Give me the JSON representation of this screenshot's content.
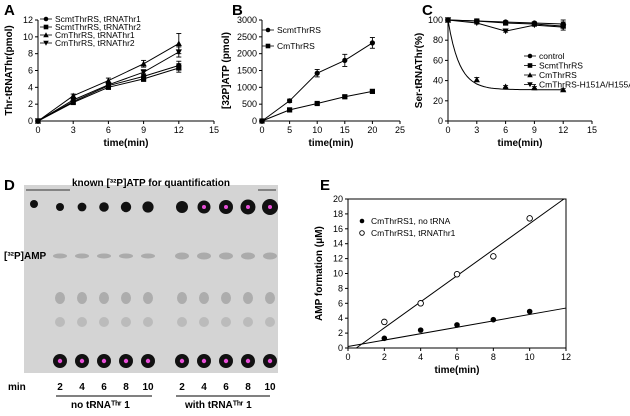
{
  "panels": {
    "A": "A",
    "B": "B",
    "C": "C",
    "D": "D",
    "E": "E"
  },
  "gel": {
    "header": "known [³²P]ATP for quantification",
    "amp_label": "[³²P]AMP",
    "min_label": "min",
    "lanes_left": [
      "2",
      "4",
      "6",
      "8",
      "10"
    ],
    "lanes_right": [
      "2",
      "4",
      "6",
      "8",
      "10"
    ],
    "group_left": "no tRNAᵀʰʳ 1",
    "group_right": "with tRNAᵀʰʳ 1",
    "colors": {
      "background": "#d2d2d2",
      "spot": "#111111",
      "highlight": "#e84fd8"
    }
  },
  "chart_data": [
    {
      "id": "A",
      "type": "line",
      "ylabel": "Thr-tRNAThr(pmol)",
      "xlabel": "time(min)",
      "xlim": [
        0,
        15
      ],
      "ylim": [
        0,
        12
      ],
      "xticks": [
        0,
        3,
        6,
        9,
        12,
        15
      ],
      "yticks": [
        0,
        2,
        4,
        6,
        8,
        10,
        12
      ],
      "legend_position": "top-left",
      "x": [
        0,
        3,
        6,
        9,
        12
      ],
      "series": [
        {
          "name": "ScmtThrRS, tRNAThr1",
          "marker": "circle",
          "values": [
            0,
            2.3,
            4.2,
            5.3,
            6.6
          ],
          "err": [
            0,
            0.2,
            0.2,
            0.3,
            0.5
          ]
        },
        {
          "name": "ScmtThrRS, tRNAThr2",
          "marker": "square",
          "values": [
            0,
            2.2,
            4.0,
            5.0,
            6.3
          ],
          "err": [
            0,
            0.2,
            0.2,
            0.3,
            0.5
          ]
        },
        {
          "name": "CmThrRS, tRNAThr1",
          "marker": "triangle-up",
          "values": [
            0,
            3.0,
            4.8,
            6.8,
            9.2
          ],
          "err": [
            0,
            0.2,
            0.3,
            0.4,
            1.2
          ]
        },
        {
          "name": "CmThrRS, tRNAThr2",
          "marker": "triangle-down",
          "values": [
            0,
            2.5,
            4.3,
            5.8,
            8.2
          ],
          "err": [
            0,
            0.2,
            0.2,
            0.3,
            0.6
          ]
        }
      ]
    },
    {
      "id": "B",
      "type": "line",
      "ylabel": "[32P]ATP (pmol)",
      "xlabel": "time(min)",
      "xlim": [
        0,
        25
      ],
      "ylim": [
        0,
        3000
      ],
      "xticks": [
        0,
        5,
        10,
        15,
        20,
        25
      ],
      "yticks": [
        0,
        500,
        1000,
        1500,
        2000,
        2500,
        3000
      ],
      "legend_position": "top-left",
      "x": [
        0,
        5,
        10,
        15,
        20
      ],
      "series": [
        {
          "name": "ScmtThrRS",
          "marker": "circle",
          "values": [
            0,
            600,
            1420,
            1800,
            2320
          ],
          "err": [
            0,
            50,
            110,
            180,
            160
          ]
        },
        {
          "name": "CmThrRS",
          "marker": "square",
          "values": [
            0,
            330,
            520,
            720,
            880
          ],
          "err": [
            0,
            20,
            30,
            40,
            40
          ]
        }
      ]
    },
    {
      "id": "C",
      "type": "line",
      "ylabel": "Ser-tRNAThr(%)",
      "xlabel": "time(min)",
      "xlim": [
        0,
        15
      ],
      "ylim": [
        0,
        100
      ],
      "xticks": [
        0,
        3,
        6,
        9,
        12,
        15
      ],
      "yticks": [
        0,
        20,
        40,
        60,
        80,
        100
      ],
      "legend_position": "right",
      "x": [
        0,
        3,
        6,
        9,
        12
      ],
      "series": [
        {
          "name": "control",
          "marker": "circle",
          "values": [
            100,
            99,
            98,
            97,
            96
          ],
          "err": [
            0,
            1,
            1,
            1,
            4
          ]
        },
        {
          "name": "ScmtThrRS",
          "marker": "square",
          "values": [
            100,
            99,
            97,
            96,
            94
          ],
          "err": [
            0,
            1,
            1,
            1,
            4
          ]
        },
        {
          "name": "CmThrRS",
          "marker": "triangle-up",
          "values": [
            100,
            41,
            34,
            33,
            31
          ],
          "err": [
            0,
            2,
            1,
            1,
            1
          ]
        },
        {
          "name": "CmThrRS-H151A/H155A",
          "marker": "triangle-down",
          "values": [
            100,
            97,
            89,
            95,
            93
          ],
          "err": [
            0,
            1,
            1,
            1,
            1
          ]
        }
      ]
    },
    {
      "id": "E",
      "type": "scatter",
      "ylabel": "AMP formation (μM)",
      "xlabel": "time(min)",
      "xlim": [
        0,
        12
      ],
      "ylim": [
        0,
        20
      ],
      "xticks": [
        0,
        2,
        4,
        6,
        8,
        10,
        12
      ],
      "yticks": [
        0,
        2,
        4,
        6,
        8,
        10,
        12,
        14,
        16,
        18,
        20
      ],
      "legend_position": "top-left",
      "x": [
        2,
        4,
        6,
        8,
        10
      ],
      "series": [
        {
          "name": "CmThrRS1, no tRNA",
          "marker": "filled-circle",
          "values": [
            1.3,
            2.4,
            3.1,
            3.8,
            4.9
          ],
          "fit": [
            0.2,
            0.43
          ]
        },
        {
          "name": "CmThrRS1, tRNAThr1",
          "marker": "open-circle",
          "values": [
            3.5,
            6.0,
            9.9,
            12.3,
            17.4
          ],
          "fit": [
            -0.8,
            1.75
          ]
        }
      ]
    }
  ]
}
